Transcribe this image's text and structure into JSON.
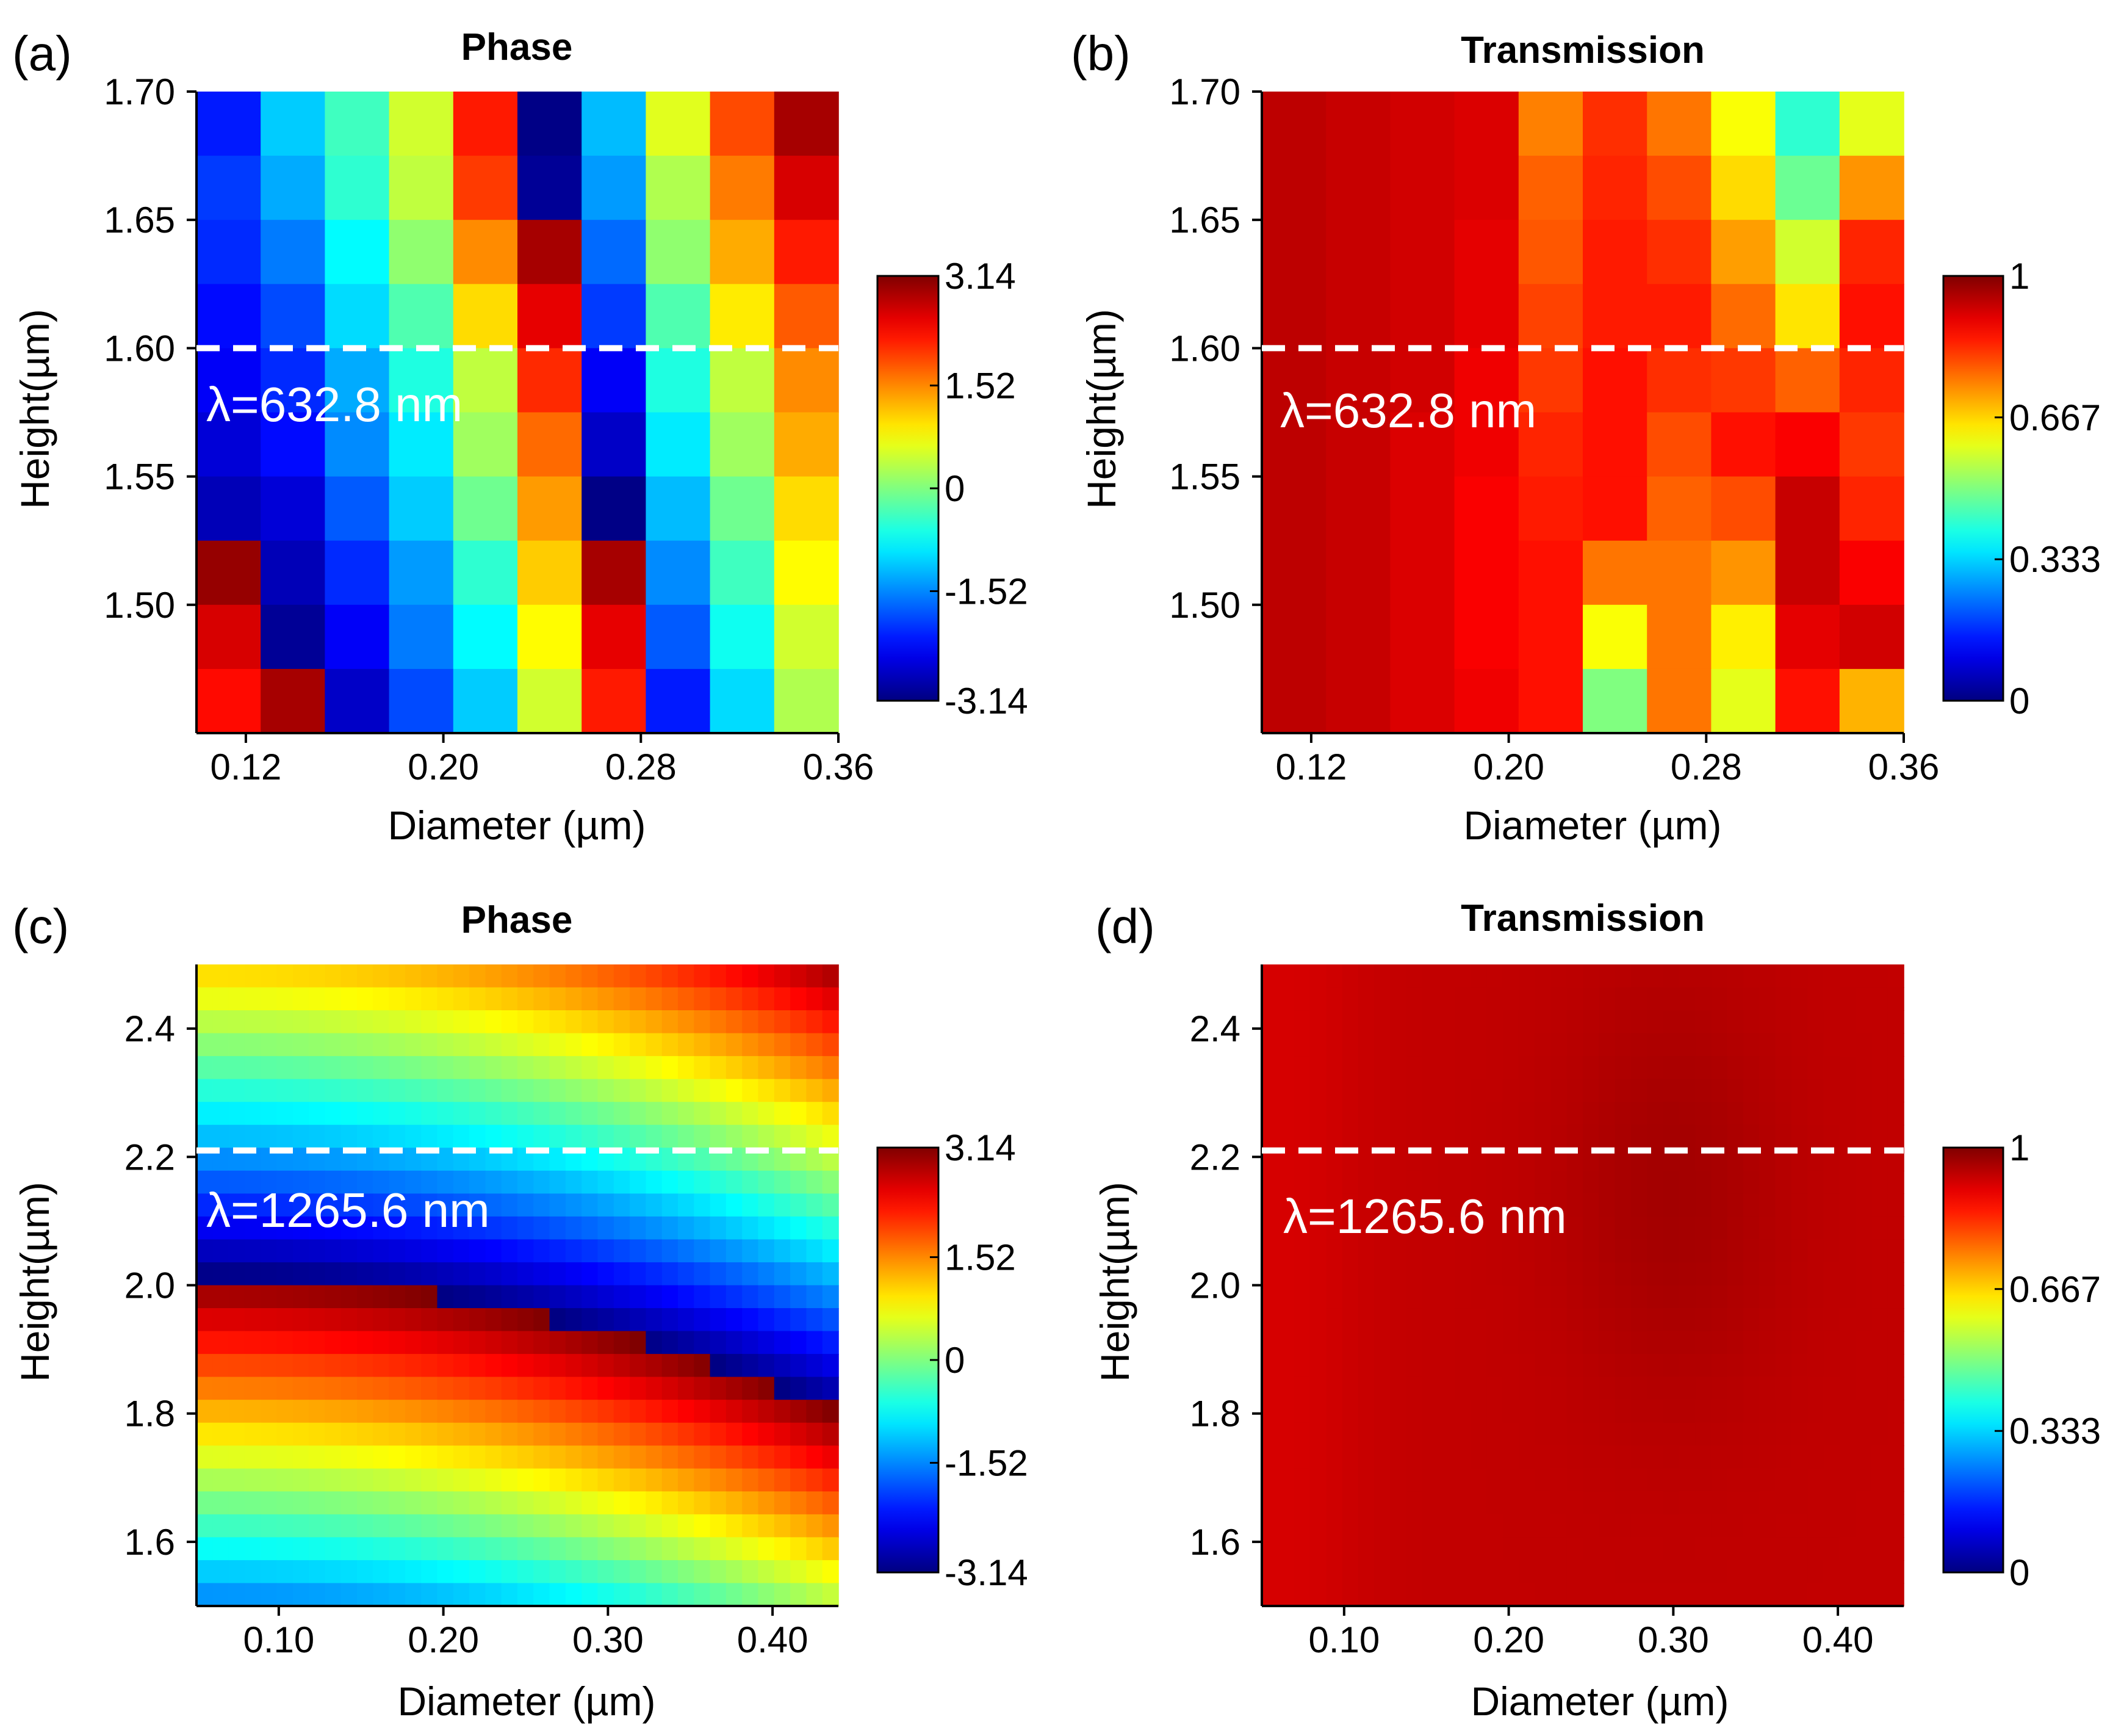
{
  "chart_data": [
    {
      "id": "a",
      "panel_label": "(a)",
      "type": "heatmap",
      "title": "Phase",
      "xlabel": "Diameter (µm)",
      "ylabel": "Height(µm)",
      "x_ticks": [
        "0.12",
        "0.20",
        "0.28",
        "0.36"
      ],
      "y_ticks": [
        "1.70",
        "1.65",
        "1.60",
        "1.55",
        "1.50"
      ],
      "x_range": [
        0.1,
        0.36
      ],
      "y_range": [
        1.45,
        1.7
      ],
      "annotation": "λ=632.8 nm",
      "dashed_line_y": 1.6,
      "colorbar_ticks": [
        "3.14",
        "1.52",
        "0",
        "-1.52",
        "-3.14"
      ],
      "colorbar_range": [
        -3.14,
        3.14
      ],
      "grid": {
        "rows": 10,
        "cols": 10,
        "values": [
          [
            -2.2,
            -1.1,
            -0.4,
            0.5,
            2.2,
            -3.1,
            -1.2,
            0.6,
            1.9,
            2.9
          ],
          [
            -2.0,
            -1.3,
            -0.5,
            0.4,
            2.0,
            -3.0,
            -1.4,
            0.3,
            1.6,
            2.6
          ],
          [
            -2.1,
            -1.6,
            -0.8,
            0.1,
            1.5,
            2.9,
            -1.7,
            0.1,
            1.3,
            2.2
          ],
          [
            -2.3,
            -1.9,
            -1.0,
            -0.3,
            1.0,
            2.5,
            -2.0,
            -0.3,
            0.9,
            1.8
          ],
          [
            -2.4,
            -2.1,
            -1.3,
            -0.6,
            0.4,
            2.1,
            -2.4,
            -0.6,
            0.4,
            1.5
          ],
          [
            -2.6,
            -2.3,
            -1.5,
            -0.9,
            0.2,
            1.7,
            -2.7,
            -0.9,
            0.2,
            1.3
          ],
          [
            -2.8,
            -2.6,
            -1.8,
            -1.1,
            -0.1,
            1.4,
            -3.1,
            -1.2,
            -0.1,
            1.0
          ],
          [
            3.0,
            -2.8,
            -2.1,
            -1.4,
            -0.5,
            1.1,
            2.9,
            -1.5,
            -0.4,
            0.8
          ],
          [
            2.6,
            -3.0,
            -2.4,
            -1.6,
            -0.8,
            0.8,
            2.5,
            -1.8,
            -0.7,
            0.5
          ],
          [
            2.3,
            2.9,
            -2.7,
            -1.9,
            -1.1,
            0.5,
            2.2,
            -2.2,
            -1.0,
            0.3
          ]
        ]
      }
    },
    {
      "id": "b",
      "panel_label": "(b)",
      "type": "heatmap",
      "title": "Transmission",
      "xlabel": "Diameter (µm)",
      "ylabel": "Height(µm)",
      "x_ticks": [
        "0.12",
        "0.20",
        "0.28",
        "0.36"
      ],
      "y_ticks": [
        "1.70",
        "1.65",
        "1.60",
        "1.55",
        "1.50"
      ],
      "x_range": [
        0.1,
        0.36
      ],
      "y_range": [
        1.45,
        1.7
      ],
      "annotation": "λ=632.8 nm",
      "dashed_line_y": 1.6,
      "colorbar_ticks": [
        "1",
        "0.667",
        "0.333",
        "0"
      ],
      "colorbar_range": [
        0,
        1
      ],
      "grid": {
        "rows": 10,
        "cols": 10,
        "values": [
          [
            0.94,
            0.93,
            0.92,
            0.91,
            0.75,
            0.83,
            0.76,
            0.62,
            0.42,
            0.6
          ],
          [
            0.94,
            0.93,
            0.92,
            0.91,
            0.78,
            0.84,
            0.8,
            0.66,
            0.48,
            0.73
          ],
          [
            0.94,
            0.93,
            0.92,
            0.9,
            0.79,
            0.85,
            0.83,
            0.72,
            0.58,
            0.84
          ],
          [
            0.94,
            0.93,
            0.92,
            0.9,
            0.81,
            0.85,
            0.85,
            0.77,
            0.65,
            0.86
          ],
          [
            0.94,
            0.93,
            0.92,
            0.89,
            0.82,
            0.86,
            0.83,
            0.82,
            0.78,
            0.84
          ],
          [
            0.94,
            0.93,
            0.91,
            0.89,
            0.84,
            0.86,
            0.8,
            0.86,
            0.88,
            0.82
          ],
          [
            0.94,
            0.93,
            0.91,
            0.88,
            0.85,
            0.86,
            0.78,
            0.8,
            0.93,
            0.84
          ],
          [
            0.94,
            0.93,
            0.91,
            0.88,
            0.86,
            0.76,
            0.76,
            0.73,
            0.93,
            0.88
          ],
          [
            0.94,
            0.93,
            0.91,
            0.88,
            0.86,
            0.62,
            0.76,
            0.64,
            0.9,
            0.92
          ],
          [
            0.94,
            0.93,
            0.91,
            0.89,
            0.86,
            0.5,
            0.76,
            0.6,
            0.86,
            0.7
          ]
        ]
      }
    },
    {
      "id": "c",
      "panel_label": "(c)",
      "type": "heatmap",
      "title": "Phase",
      "xlabel": "Diameter (µm)",
      "ylabel": "Height(µm)",
      "x_ticks": [
        "0.10",
        "0.20",
        "0.30",
        "0.40"
      ],
      "y_ticks": [
        "2.4",
        "2.2",
        "2.0",
        "1.8",
        "1.6"
      ],
      "x_range": [
        0.05,
        0.44
      ],
      "y_range": [
        1.5,
        2.5
      ],
      "annotation": "λ=1265.6 nm",
      "dashed_line_y": 2.21,
      "colorbar_ticks": [
        "3.14",
        "1.52",
        "0",
        "-1.52",
        "-3.14"
      ],
      "colorbar_range": [
        -3.14,
        3.14
      ],
      "grid": {
        "rows": 28,
        "cols": 40,
        "model": "phase = -1.6 + 9.6*(h-1.5)/1.0 + 12.5*(d-0.05)^2 - 0.6*((h-1.5)/1.0)^2, wrapped to [-3.14, 3.14]"
      }
    },
    {
      "id": "d",
      "panel_label": "(d)",
      "type": "heatmap",
      "title": "Transmission",
      "xlabel": "Diameter (µm)",
      "ylabel": "Height(µm)",
      "x_ticks": [
        "0.10",
        "0.20",
        "0.30",
        "0.40"
      ],
      "y_ticks": [
        "2.4",
        "2.2",
        "2.0",
        "1.8",
        "1.6"
      ],
      "x_range": [
        0.05,
        0.44
      ],
      "y_range": [
        1.5,
        2.5
      ],
      "annotation": "λ=1265.6 nm",
      "dashed_line_y": 2.21,
      "colorbar_ticks": [
        "1",
        "0.667",
        "0.333",
        "0"
      ],
      "colorbar_range": [
        0,
        1
      ],
      "grid": {
        "rows": 28,
        "cols": 40,
        "model": "transmission ≈ 0.91–0.97, nearly uniform dark red"
      }
    }
  ]
}
